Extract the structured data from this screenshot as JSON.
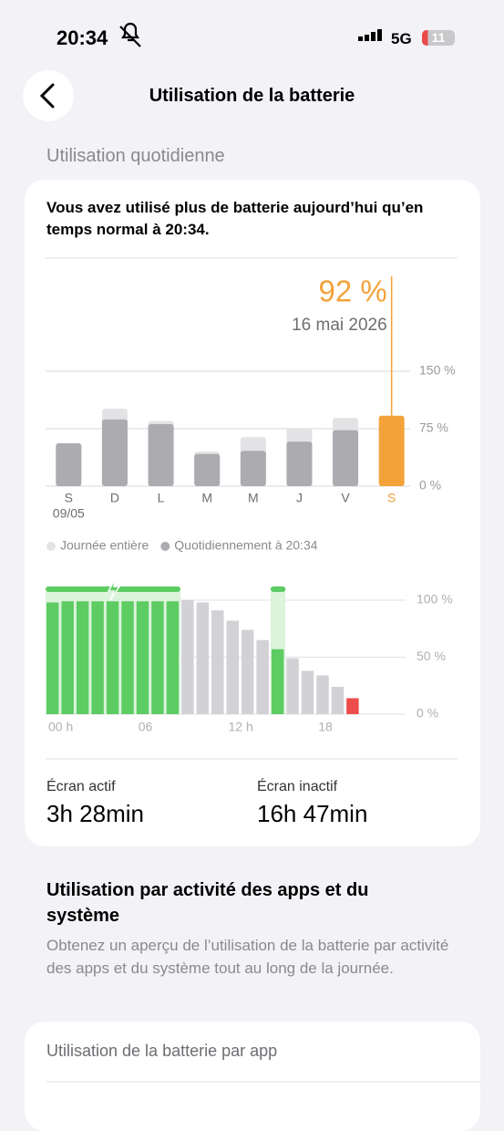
{
  "status_bar": {
    "time": "20:34",
    "network": "5G",
    "battery": "11"
  },
  "header": {
    "title": "Utilisation de la batterie"
  },
  "daily_section": {
    "title": "Utilisation quotidienne",
    "message": "Vous avez utilisé plus de batterie aujourd’hui qu’en temps normal à 20:34.",
    "screen_on": {
      "label": "Écran actif",
      "value": "3h 28min"
    },
    "screen_off": {
      "label": "Écran inactif",
      "value": "16h 47min"
    }
  },
  "activity_section": {
    "title": "Utilisation par activité des apps et du système",
    "description": "Obtenez un aperçu de l’utilisation de la batterie par activité des apps et du système tout au long de la journée."
  },
  "app_card": {
    "title": "Utilisation de la batterie par app"
  },
  "chart_data": [
    {
      "type": "bar",
      "categories": [
        "S",
        "D",
        "L",
        "M",
        "M",
        "J",
        "V",
        "S"
      ],
      "first_date": "09/05",
      "callout_date": "16 mai 2026",
      "series": [
        {
          "name": "Journée entière",
          "color": "#e3e3e6",
          "values": [
            56,
            101,
            85,
            45,
            64,
            75,
            89,
            null
          ]
        },
        {
          "name": "Quotidiennement à 20:34",
          "color": "#ababb0",
          "colors": [
            "#ababb0",
            "#ababb0",
            "#ababb0",
            "#ababb0",
            "#ababb0",
            "#ababb0",
            "#ababb0",
            "#f3a23a"
          ],
          "values": [
            56,
            87,
            81,
            42,
            46,
            58,
            73,
            92
          ],
          "value_labels": [
            null,
            null,
            null,
            null,
            null,
            null,
            null,
            "92 %"
          ]
        }
      ],
      "ylim": [
        0,
        150
      ],
      "yticks": [
        {
          "value": 0,
          "label": "0 %"
        },
        {
          "value": 75,
          "label": "75 %"
        },
        {
          "value": 150,
          "label": "150 %"
        }
      ],
      "grid": true
    },
    {
      "type": "bar",
      "x": [
        0,
        1,
        2,
        3,
        4,
        5,
        6,
        7,
        8,
        9,
        10,
        11,
        12,
        13,
        14,
        15,
        16,
        17,
        18,
        19,
        20
      ],
      "values": [
        98,
        99,
        99,
        99,
        99,
        99,
        99,
        99,
        99,
        100,
        98,
        91,
        82,
        74,
        65,
        57,
        49,
        38,
        34,
        24,
        14
      ],
      "colors": [
        "#5dcc63",
        "#5dcc63",
        "#5dcc63",
        "#5dcc63",
        "#5dcc63",
        "#5dcc63",
        "#5dcc63",
        "#5dcc63",
        "#5dcc63",
        "#d1d1d6",
        "#d1d1d6",
        "#d1d1d6",
        "#d1d1d6",
        "#d1d1d6",
        "#d1d1d6",
        "#5dcc63",
        "#d1d1d6",
        "#d1d1d6",
        "#d1d1d6",
        "#d1d1d6",
        "#ee4b4b"
      ],
      "charging": [
        {
          "start": 0,
          "end": 9
        },
        {
          "start": 15,
          "end": 16
        }
      ],
      "xlim": [
        0,
        24
      ],
      "xticks": [
        {
          "value": 0,
          "label": "00 h"
        },
        {
          "value": 6,
          "label": "06"
        },
        {
          "value": 12,
          "label": "12 h"
        },
        {
          "value": 18,
          "label": "18"
        }
      ],
      "ylim": [
        0,
        100
      ],
      "yticks": [
        {
          "value": 0,
          "label": "0 %"
        },
        {
          "value": 50,
          "label": "50 %"
        },
        {
          "value": 100,
          "label": "100 %"
        }
      ],
      "grid": true
    }
  ]
}
